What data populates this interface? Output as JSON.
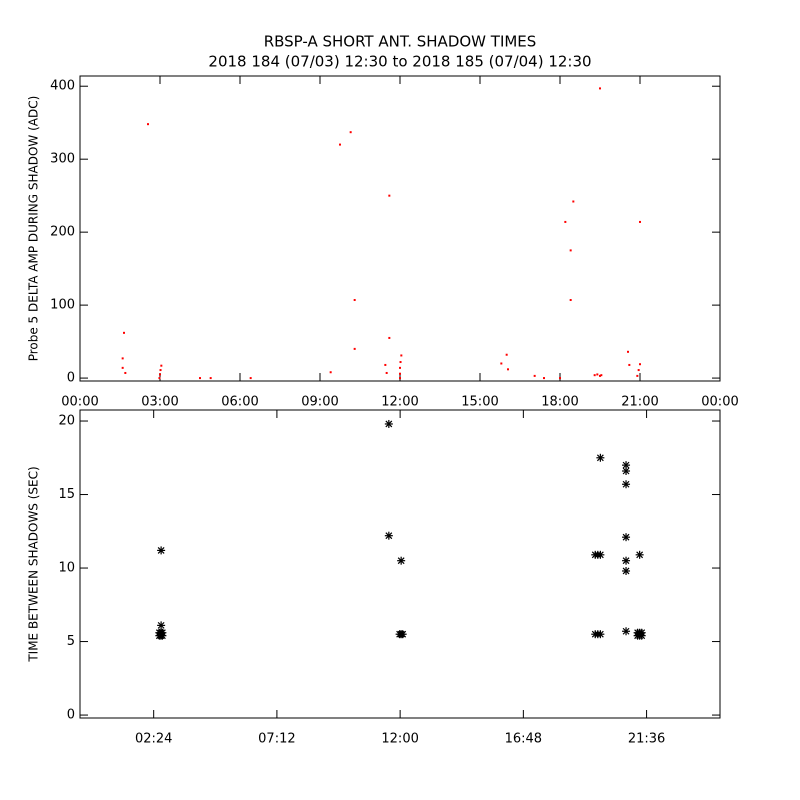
{
  "chart_data": [
    {
      "type": "scatter",
      "title": "RBSP-A SHORT ANT. SHADOW TIMES",
      "subtitle": "2018 184 (07/03) 12:30 to 2018 185 (07/04) 12:30",
      "ylabel": "Probe 5 DELTA AMP DURING SHADOW (ADC)",
      "marker": "dot",
      "color": "#ff0000",
      "x": [
        2.55,
        1.65,
        1.6,
        1.6,
        1.7,
        3.05,
        3.02,
        3.0,
        2.98,
        4.5,
        4.9,
        6.4,
        9.75,
        10.15,
        10.3,
        10.3,
        9.4,
        11.6,
        11.6,
        11.45,
        11.5,
        12.05,
        12.02,
        12.0,
        12.0,
        12.0,
        15.8,
        16.0,
        16.05,
        17.05,
        17.4,
        18.2,
        18.4,
        18.5,
        18.4,
        18.0,
        19.3,
        19.4,
        19.5,
        19.55,
        19.5,
        20.55,
        20.6,
        21.0,
        21.0,
        20.95,
        20.9
      ],
      "y": [
        348,
        62,
        27,
        14,
        7,
        17,
        11,
        5,
        0,
        0,
        0,
        0,
        320,
        337,
        107,
        40,
        8,
        250,
        55,
        18,
        7,
        31,
        22,
        14,
        6,
        0,
        20,
        32,
        12,
        3,
        0,
        214,
        175,
        242,
        107,
        0,
        4,
        5,
        3,
        4,
        397,
        36,
        18,
        214,
        19,
        11,
        3
      ],
      "xlim": [
        0,
        24
      ],
      "ylim": [
        -4,
        414
      ],
      "xticks": [
        {
          "value": 0,
          "label": "00:00"
        },
        {
          "value": 3,
          "label": "03:00"
        },
        {
          "value": 6,
          "label": "06:00"
        },
        {
          "value": 9,
          "label": "09:00"
        },
        {
          "value": 12,
          "label": "12:00"
        },
        {
          "value": 15,
          "label": "15:00"
        },
        {
          "value": 18,
          "label": "18:00"
        },
        {
          "value": 21,
          "label": "21:00"
        },
        {
          "value": 24,
          "label": "00:00"
        }
      ],
      "yticks": [
        0,
        100,
        200,
        300,
        400
      ]
    },
    {
      "type": "scatter",
      "ylabel": "TIME BETWEEN SHADOWS (SEC)",
      "marker": "asterisk",
      "color": "#000000",
      "x": [
        2.69,
        2.69,
        2.62,
        2.68,
        2.74,
        2.62,
        2.68,
        2.74,
        11.56,
        11.56,
        12.04,
        11.98,
        12.04,
        12.1,
        19.8,
        19.6,
        19.7,
        19.8,
        19.6,
        19.7,
        19.8,
        20.8,
        20.8,
        20.8,
        20.8,
        20.8,
        20.8,
        20.8,
        21.33,
        21.25,
        21.33,
        21.41,
        21.25,
        21.33,
        21.41
      ],
      "y": [
        11.2,
        6.1,
        5.4,
        5.4,
        5.4,
        5.6,
        5.6,
        5.6,
        19.8,
        12.2,
        10.5,
        5.5,
        5.5,
        5.5,
        17.5,
        10.9,
        10.9,
        10.9,
        5.5,
        5.5,
        5.5,
        17.0,
        16.6,
        15.7,
        12.1,
        10.5,
        9.8,
        5.7,
        10.9,
        5.4,
        5.4,
        5.4,
        5.6,
        5.6,
        5.6
      ],
      "xlim": [
        -0.47,
        24.46
      ],
      "ylim": [
        -0.2,
        20.75
      ],
      "xticks": [
        {
          "value": 2.4,
          "label": "02:24"
        },
        {
          "value": 7.2,
          "label": "07:12"
        },
        {
          "value": 12,
          "label": "12:00"
        },
        {
          "value": 16.8,
          "label": "16:48"
        },
        {
          "value": 21.6,
          "label": "21:36"
        }
      ],
      "yticks": [
        0,
        5,
        10,
        15,
        20
      ]
    }
  ]
}
